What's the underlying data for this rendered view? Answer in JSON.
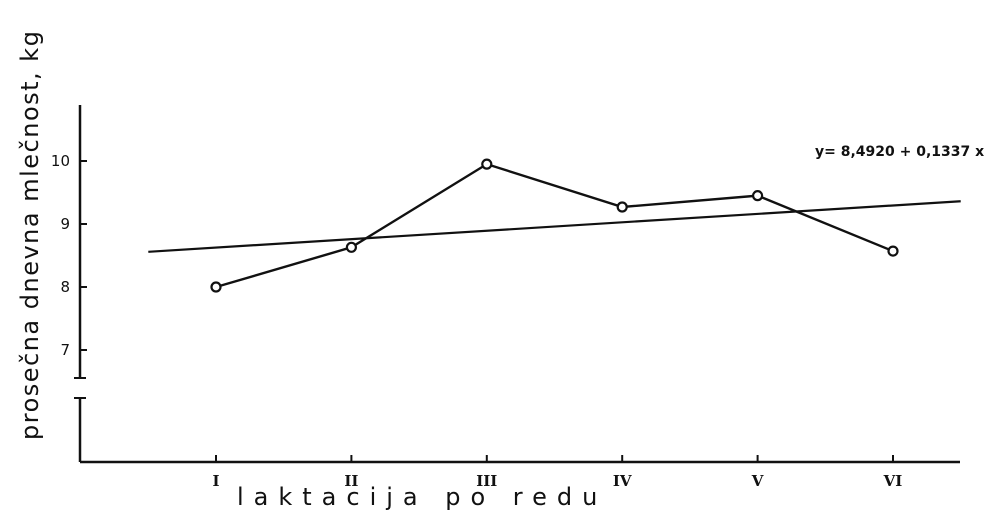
{
  "chart_data": {
    "type": "line",
    "title": "",
    "xlabel": "laktacija po redu",
    "ylabel": "prosečna dnevna mlečnost, kg",
    "categories": [
      "I",
      "II",
      "III",
      "IV",
      "V",
      "VI"
    ],
    "series": [
      {
        "values": [
          8.0,
          8.63,
          9.95,
          9.27,
          9.45,
          8.57
        ]
      }
    ],
    "trendline": {
      "equation": "y= 8,4920 + 0,1337 x",
      "intercept": 8.492,
      "slope": 0.1337
    },
    "y_ticks": [
      7,
      8,
      9,
      10
    ],
    "y_tick_labels": [
      "7",
      "8",
      "9",
      "10"
    ],
    "ylim": [
      6.6,
      10.75
    ],
    "axis_break": true,
    "grid": false,
    "colors": {
      "line": "#111111",
      "background": "#ffffff"
    }
  }
}
